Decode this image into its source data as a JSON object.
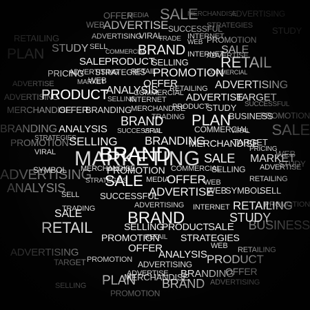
{
  "palette": {
    "background": "#050505",
    "word_bright": "#ffffff",
    "word_dim": "#6a6a6a"
  },
  "words": [
    {
      "text": "OFFER",
      "weight": "mid"
    },
    {
      "text": "MEDIA",
      "weight": "small"
    },
    {
      "text": "SALE",
      "weight": "large"
    },
    {
      "text": "MERCHANDISE",
      "weight": "small"
    },
    {
      "text": "ADVERTISING",
      "weight": "mid"
    },
    {
      "text": "WEB",
      "weight": "mid"
    },
    {
      "text": "ADVERTISE",
      "weight": "mid"
    },
    {
      "text": "SUCCESSFUL",
      "weight": "small"
    },
    {
      "text": "STRATEGIES",
      "weight": "small"
    },
    {
      "text": "TRADE",
      "weight": "small"
    },
    {
      "text": "RETAILING",
      "weight": "mid"
    },
    {
      "text": "ADVERTISING",
      "weight": "small"
    },
    {
      "text": "VIRAL",
      "weight": "small"
    },
    {
      "text": "INTERNET",
      "weight": "small"
    },
    {
      "text": "WEB",
      "weight": "small"
    },
    {
      "text": "PROMOTION",
      "weight": "small"
    },
    {
      "text": "STUDY",
      "weight": "mid"
    },
    {
      "text": "STUDY",
      "weight": "mid"
    },
    {
      "text": "SELL",
      "weight": "small"
    },
    {
      "text": "COMMERCIAL",
      "weight": "small"
    },
    {
      "text": "BRAND",
      "weight": "large"
    },
    {
      "text": "INTERNET",
      "weight": "small"
    },
    {
      "text": "SALE",
      "weight": "mid"
    },
    {
      "text": "PLAN",
      "weight": "large"
    },
    {
      "text": "ADVERTISE",
      "weight": "small"
    },
    {
      "text": "SALE",
      "weight": "mid"
    },
    {
      "text": "PRODUCT",
      "weight": "mid"
    },
    {
      "text": "SELLING",
      "weight": "small"
    },
    {
      "text": "RETAIL",
      "weight": "large"
    },
    {
      "text": "ADVERTISING",
      "weight": "small"
    },
    {
      "text": "PRICING",
      "weight": "small"
    },
    {
      "text": "STRATEGIES",
      "weight": "small"
    },
    {
      "text": "RETAIL",
      "weight": "small"
    },
    {
      "text": "PROMOTION",
      "weight": "mid"
    },
    {
      "text": "COMMERCIAL",
      "weight": "small"
    },
    {
      "text": "PRODUCT",
      "weight": "mid"
    },
    {
      "text": "ADVERTISE",
      "weight": "small"
    },
    {
      "text": "MARKET",
      "weight": "small"
    },
    {
      "text": "WEB",
      "weight": "small"
    },
    {
      "text": "OFFER",
      "weight": "mid"
    },
    {
      "text": "ADVERTISING",
      "weight": "mid"
    },
    {
      "text": "PRODUCT",
      "weight": "large"
    },
    {
      "text": "ANALYSIS",
      "weight": "mid"
    },
    {
      "text": "COMMERCIAL",
      "weight": "small"
    },
    {
      "text": "SELLING",
      "weight": "small"
    },
    {
      "text": "INTERNET",
      "weight": "small"
    },
    {
      "text": "RETAILING",
      "weight": "small"
    },
    {
      "text": "ADVERTISING",
      "weight": "small"
    },
    {
      "text": "ADVERTISE",
      "weight": "mid"
    },
    {
      "text": "TARGET",
      "weight": "mid"
    },
    {
      "text": "MERCHANDISE",
      "weight": "mid"
    },
    {
      "text": "OFFER",
      "weight": "small"
    },
    {
      "text": "BRANDING",
      "weight": "small"
    },
    {
      "text": "MERCHANDISE",
      "weight": "small"
    },
    {
      "text": "PRODUCT",
      "weight": "small"
    },
    {
      "text": "STUDY",
      "weight": "small"
    },
    {
      "text": "SUCCESSFUL",
      "weight": "small"
    },
    {
      "text": "BRANDING",
      "weight": "mid"
    },
    {
      "text": "ANALYSIS",
      "weight": "mid"
    },
    {
      "text": "BRAND",
      "weight": "large"
    },
    {
      "text": "TRADING",
      "weight": "small"
    },
    {
      "text": "PLAN",
      "weight": "large"
    },
    {
      "text": "BUSINESS",
      "weight": "small"
    },
    {
      "text": "PROMOTION",
      "weight": "mid"
    },
    {
      "text": "SALE",
      "weight": "large"
    },
    {
      "text": "STRATEGIES",
      "weight": "small"
    },
    {
      "text": "SUCCESSFUL",
      "weight": "small"
    },
    {
      "text": "VIRAL",
      "weight": "small"
    },
    {
      "text": "COMMERCIAL",
      "weight": "small"
    },
    {
      "text": "VIRAL",
      "weight": "small"
    },
    {
      "text": "PROMOTION",
      "weight": "large"
    },
    {
      "text": "SELLING",
      "weight": "mid"
    },
    {
      "text": "BRANDING",
      "weight": "small"
    },
    {
      "text": "MERCHANDISE",
      "weight": "small"
    },
    {
      "text": "TARGET",
      "weight": "small"
    },
    {
      "text": "VIRAL",
      "weight": "small"
    },
    {
      "text": "MARKETING",
      "weight": "hero"
    },
    {
      "text": "BRAND",
      "weight": "mid"
    },
    {
      "text": "SALE",
      "weight": "mid"
    },
    {
      "text": "MARKET",
      "weight": "small"
    },
    {
      "text": "PRICING",
      "weight": "small"
    },
    {
      "text": "WEB",
      "weight": "large"
    },
    {
      "text": "ADVERTISING",
      "weight": "small"
    },
    {
      "text": "SYMBOL",
      "weight": "small"
    },
    {
      "text": "MERCHANDISE",
      "weight": "mid"
    },
    {
      "text": "PROMOTION",
      "weight": "small"
    },
    {
      "text": "COMMERCIAL",
      "weight": "small"
    },
    {
      "text": "SELLING",
      "weight": "small"
    },
    {
      "text": "ADVERTISE",
      "weight": "small"
    },
    {
      "text": "STUDY",
      "weight": "small"
    },
    {
      "text": "SALE",
      "weight": "large"
    },
    {
      "text": "MEDIA",
      "weight": "small"
    },
    {
      "text": "OFFER",
      "weight": "mid"
    },
    {
      "text": "WEB",
      "weight": "small"
    },
    {
      "text": "RETAILING",
      "weight": "small"
    },
    {
      "text": "ANALYSIS",
      "weight": "large"
    },
    {
      "text": "STRATEGIES",
      "weight": "small"
    },
    {
      "text": "ADVERTISE",
      "weight": "mid"
    },
    {
      "text": "WEB",
      "weight": "small"
    },
    {
      "text": "SYMBOL",
      "weight": "small"
    },
    {
      "text": "SELL",
      "weight": "small"
    },
    {
      "text": "SELL",
      "weight": "small"
    },
    {
      "text": "SUCCESSFUL",
      "weight": "small"
    },
    {
      "text": "TRADING",
      "weight": "small"
    },
    {
      "text": "RETAILING",
      "weight": "mid"
    },
    {
      "text": "PROMOTION",
      "weight": "small"
    },
    {
      "text": "ADVERTISING",
      "weight": "small"
    },
    {
      "text": "SALE",
      "weight": "mid"
    },
    {
      "text": "INTERNET",
      "weight": "small"
    },
    {
      "text": "BRAND",
      "weight": "large"
    },
    {
      "text": "STUDY",
      "weight": "mid"
    },
    {
      "text": "RETAIL",
      "weight": "large"
    },
    {
      "text": "SELLING",
      "weight": "small"
    },
    {
      "text": "PRODUCT",
      "weight": "mid"
    },
    {
      "text": "SALE",
      "weight": "mid"
    },
    {
      "text": "BUSINESS",
      "weight": "mid"
    },
    {
      "text": "PROMOTION",
      "weight": "small"
    },
    {
      "text": "RETAIL",
      "weight": "small"
    },
    {
      "text": "STRATEGIES",
      "weight": "small"
    },
    {
      "text": "WEB",
      "weight": "small"
    },
    {
      "text": "ADVERTISING",
      "weight": "mid"
    },
    {
      "text": "RETAILING",
      "weight": "small"
    },
    {
      "text": "OFFER",
      "weight": "mid"
    },
    {
      "text": "ANALYSIS",
      "weight": "mid"
    },
    {
      "text": "PRODUCT",
      "weight": "mid"
    },
    {
      "text": "TARGET",
      "weight": "small"
    },
    {
      "text": "PROMOTION",
      "weight": "small"
    },
    {
      "text": "ADVERTISING",
      "weight": "small"
    },
    {
      "text": "ADVERTISE",
      "weight": "small"
    },
    {
      "text": "PLAN",
      "weight": "large"
    },
    {
      "text": "MERCHANDISE",
      "weight": "small"
    },
    {
      "text": "BRANDING",
      "weight": "mid"
    },
    {
      "text": "OFFER",
      "weight": "mid"
    },
    {
      "text": "SELLING",
      "weight": "small"
    },
    {
      "text": "BRAND",
      "weight": "large"
    },
    {
      "text": "ADVERTISING",
      "weight": "small"
    },
    {
      "text": "PROMOTION",
      "weight": "small"
    }
  ]
}
